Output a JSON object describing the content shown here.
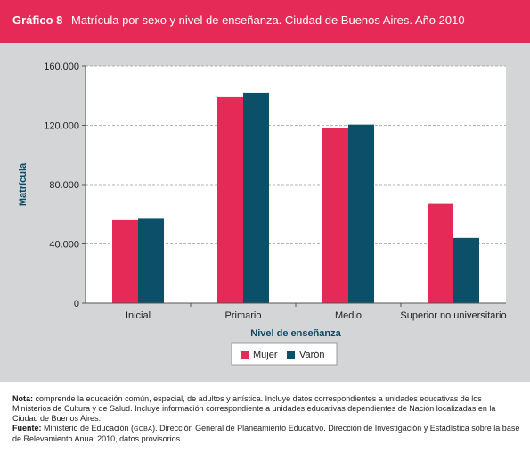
{
  "header": {
    "number": "Gráfico 8",
    "title": "Matrícula por sexo y nivel de enseñanza. Ciudad de Buenos Aires. Año 2010"
  },
  "colors": {
    "header_bg": "#e52a57",
    "mujer": "#e52a57",
    "varon": "#0b5068",
    "axis_title": "#0b4a66",
    "panel_bg": "#d4d5d6"
  },
  "chart_data": {
    "type": "bar",
    "categories": [
      "Inicial",
      "Primario",
      "Medio",
      "Superior no universitario"
    ],
    "series": [
      {
        "name": "Mujer",
        "values": [
          56000,
          139000,
          118000,
          67000
        ]
      },
      {
        "name": "Varón",
        "values": [
          57500,
          142000,
          120500,
          44000
        ]
      }
    ],
    "xlabel": "Nivel de enseñanza",
    "ylabel": "Matrícula",
    "ylim": [
      0,
      160000
    ],
    "yticks": [
      0,
      40000,
      80000,
      120000,
      160000
    ],
    "ytick_labels": [
      "0",
      "40.000",
      "80.000",
      "120.000",
      "160.000"
    ],
    "grid": true,
    "legend_placement": "bottom-center"
  },
  "footer": {
    "nota_label": "Nota:",
    "nota_text": " comprende la educación común, especial, de adultos y artística. Incluye datos correspondientes a unidades educativas de los Ministerios de Cultura y de Salud. Incluye información correspondiente a unidades educativas dependientes de Nación localizadas en la Ciudad de Buenos Aires.",
    "fuente_label": "Fuente:",
    "fuente_text_1": " Ministerio de Educación (",
    "fuente_abbr": "GCBA",
    "fuente_text_2": "). Dirección General de Planeamiento Educativo. Dirección de Investigación y Estadística sobre la base de Relevamiento Anual 2010, datos provisorios."
  }
}
